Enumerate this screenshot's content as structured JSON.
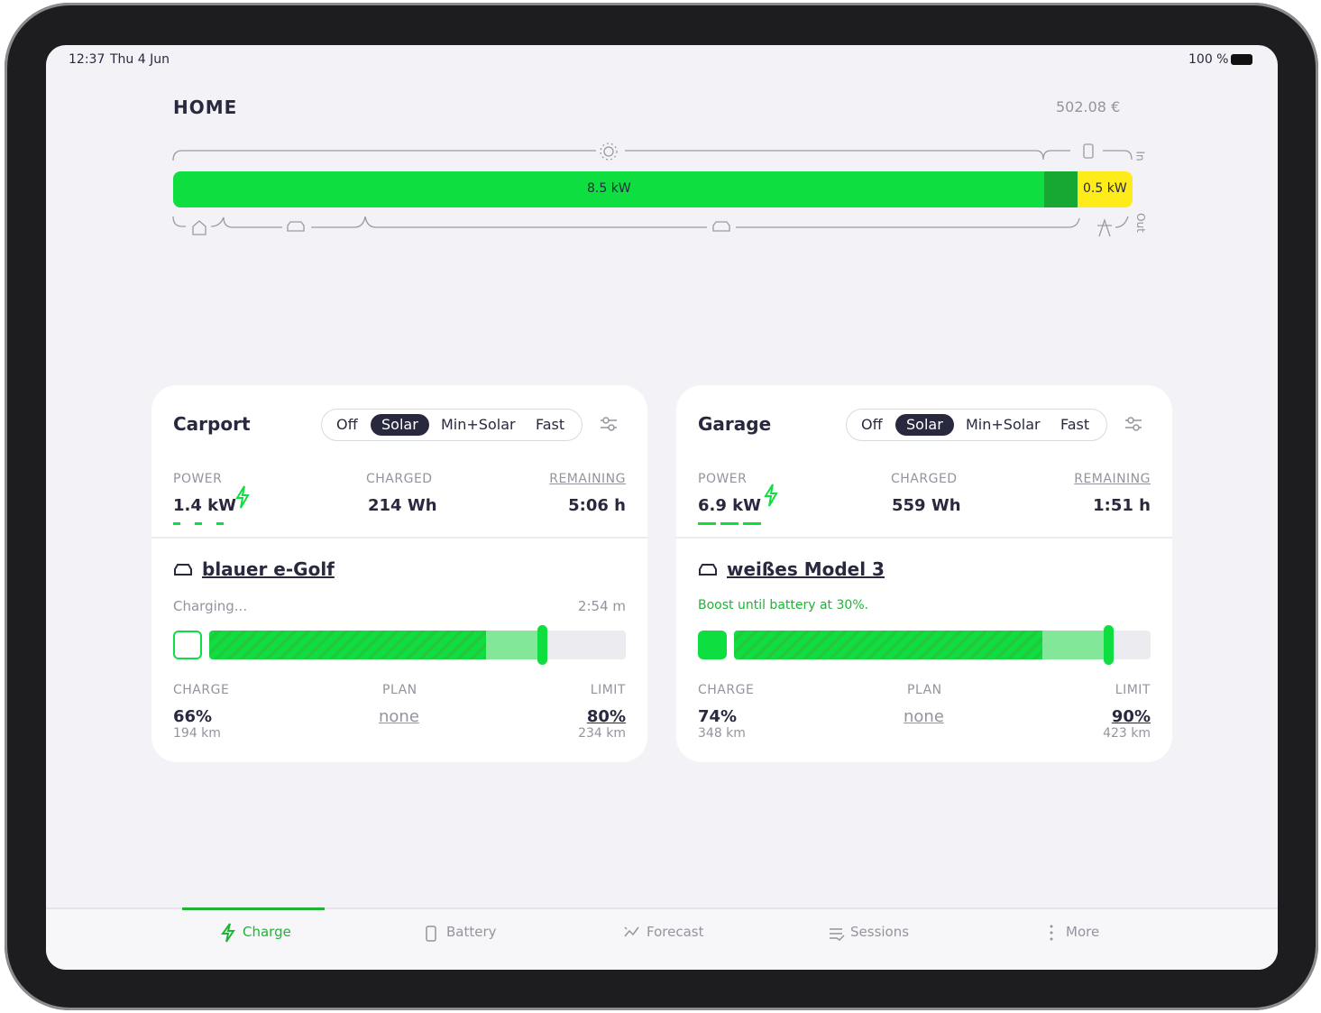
{
  "status_bar": {
    "time": "12:37",
    "date": "Thu 4 Jun",
    "battery": "100 %"
  },
  "header": {
    "title": "HOME",
    "savings": "502.08 €"
  },
  "energy_flow": {
    "production": "8.5 kW",
    "grid": "0.5 kW",
    "in_label": "In",
    "out_label": "Out"
  },
  "loadpoints": [
    {
      "title": "Carport",
      "modes": [
        "Off",
        "Solar",
        "Min+Solar",
        "Fast"
      ],
      "power_label": "POWER",
      "power": "1.4 kW",
      "charged_label": "CHARGED",
      "charged": "214 Wh",
      "remaining_label": "REMAINING",
      "remaining": "5:06 h",
      "vehicle": "blauer e-Golf",
      "status": "Charging...",
      "time": "2:54 m",
      "charge_label": "CHARGE",
      "charge": "66%",
      "charge_range": "194 km",
      "plan_label": "PLAN",
      "plan": "none",
      "limit_label": "LIMIT",
      "limit": "80%",
      "limit_range": "234 km"
    },
    {
      "title": "Garage",
      "modes": [
        "Off",
        "Solar",
        "Min+Solar",
        "Fast"
      ],
      "power_label": "POWER",
      "power": "6.9 kW",
      "charged_label": "CHARGED",
      "charged": "559 Wh",
      "remaining_label": "REMAINING",
      "remaining": "1:51 h",
      "vehicle": "weißes Model 3",
      "status": "Boost until battery at 30%.",
      "charge_label": "CHARGE",
      "charge": "74%",
      "charge_range": "348 km",
      "plan_label": "PLAN",
      "plan": "none",
      "limit_label": "LIMIT",
      "limit": "90%",
      "limit_range": "423 km"
    }
  ],
  "nav": [
    "Charge",
    "Battery",
    "Forecast",
    "Sessions",
    "More"
  ]
}
